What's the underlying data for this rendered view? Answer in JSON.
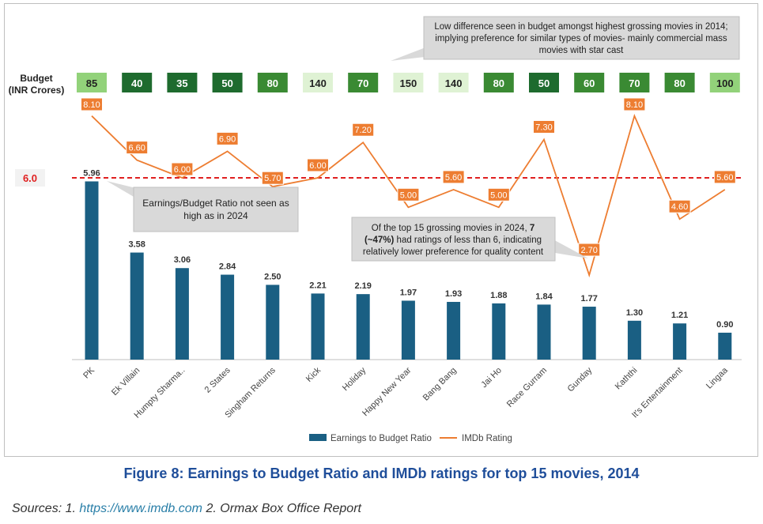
{
  "caption": "Figure 8: Earnings to Budget Ratio and IMDb ratings for top 15 movies, 2014",
  "sources": {
    "prefix": "Sources: 1.",
    "link": "https://www.imdb.com",
    "rest": "2. Ormax Box Office Report"
  },
  "chart_data": {
    "type": "bar",
    "categories": [
      "PK",
      "Ek Villain",
      "Humpty Sharma..",
      "2 States",
      "Singham Returns",
      "Kick",
      "Holiday",
      "Happy New Year",
      "Bang Bang",
      "Jai Ho",
      "Race Gurram",
      "Gunday",
      "Kaththi",
      "It's Entertainment",
      "Lingaa"
    ],
    "budget_label_line1": "Budget",
    "budget_label_line2": "(INR Crores)",
    "budgets": [
      "85",
      "40",
      "35",
      "50",
      "80",
      "140",
      "70",
      "150",
      "140",
      "80",
      "50",
      "60",
      "70",
      "80",
      "100"
    ],
    "budget_colors": [
      "#92d27a",
      "#1e6b2e",
      "#1e6b2e",
      "#1e6b2e",
      "#3a8a33",
      "#dff2d4",
      "#3a8a33",
      "#dff2d4",
      "#dff2d4",
      "#3a8a33",
      "#1e6b2e",
      "#3a8a33",
      "#3a8a33",
      "#3a8a33",
      "#92d27a"
    ],
    "budget_text_colors": [
      "#222222",
      "#ffffff",
      "#ffffff",
      "#ffffff",
      "#ffffff",
      "#222222",
      "#ffffff",
      "#222222",
      "#222222",
      "#ffffff",
      "#ffffff",
      "#ffffff",
      "#ffffff",
      "#ffffff",
      "#222222"
    ],
    "series": [
      {
        "name": "Earnings to Budget Ratio",
        "type": "bar",
        "color": "#1a5f83",
        "values": [
          5.96,
          3.58,
          3.06,
          2.84,
          2.5,
          2.21,
          2.19,
          1.97,
          1.93,
          1.88,
          1.84,
          1.77,
          1.3,
          1.21,
          0.9
        ],
        "labels": [
          "5.96",
          "3.58",
          "3.06",
          "2.84",
          "2.50",
          "2.21",
          "2.19",
          "1.97",
          "1.93",
          "1.88",
          "1.84",
          "1.77",
          "1.30",
          "1.21",
          "0.90"
        ]
      },
      {
        "name": "IMDb Rating",
        "type": "line",
        "color": "#ed7d31",
        "values": [
          8.1,
          6.6,
          6.0,
          6.9,
          5.7,
          6.0,
          7.2,
          5.0,
          5.6,
          5.0,
          7.3,
          2.7,
          8.1,
          4.6,
          5.6
        ],
        "labels": [
          "8.10",
          "6.60",
          "6.00",
          "6.90",
          "5.70",
          "6.00",
          "7.20",
          "5.00",
          "5.60",
          "5.00",
          "7.30",
          "2.70",
          "8.10",
          "4.60",
          "5.60"
        ]
      }
    ],
    "reference_line": {
      "value": 6.0,
      "label": "6.0",
      "color": "#e02020"
    },
    "annotations": [
      {
        "id": "budget-note",
        "text_lines": [
          "Low difference seen in budget amongst highest grossing movies in 2014;",
          "implying preference for similar types of movies- mainly commercial mass",
          "movies with star cast"
        ]
      },
      {
        "id": "ratio-note",
        "text_lines": [
          "Earnings/Budget Ratio not seen as",
          "high as in 2024"
        ]
      },
      {
        "id": "rating-note",
        "line1_a": "Of the top 15 grossing movies in 2024,",
        "line1_b": "7",
        "line2_a": "(~47%)",
        "line2_b": "had ratings of less than 6, indicating",
        "line3": "relatively lower preference for quality content"
      }
    ],
    "legend_position": "bottom",
    "grid": false
  }
}
